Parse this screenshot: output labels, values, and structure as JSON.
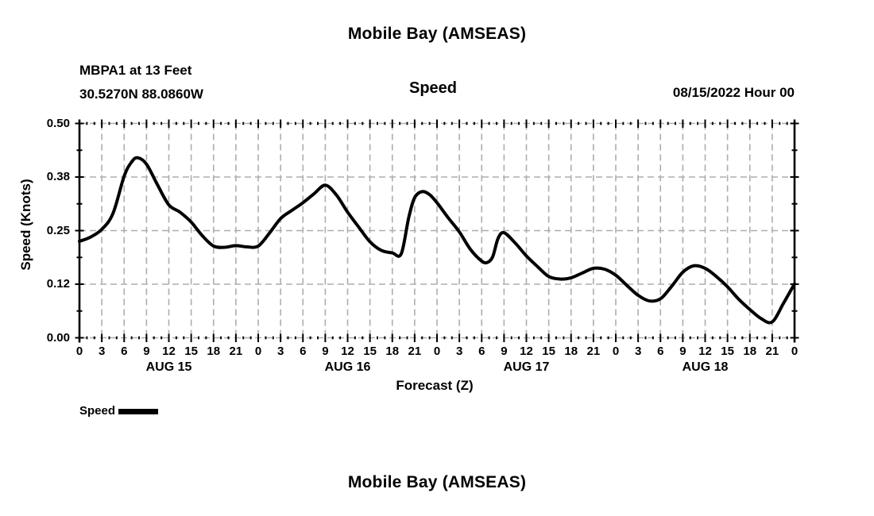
{
  "header": {
    "title": "Mobile Bay (AMSEAS)",
    "station": "MBPA1 at 13 Feet",
    "coords": "30.5270N  88.0860W",
    "subtitle": "Speed",
    "datetime": "08/15/2022 Hour 00"
  },
  "legend": {
    "label": "Speed",
    "swatch_color": "#000000"
  },
  "footer": {
    "next_title": "Mobile Bay (AMSEAS)"
  },
  "colors": {
    "background": "#ffffff",
    "text": "#000000",
    "grid": "#adadad",
    "axis": "#000000",
    "line": "#000000"
  },
  "chart_data": {
    "type": "line",
    "title": "Speed",
    "xlabel": "Forecast (Z)",
    "ylabel": "Speed (Knots)",
    "x_unit": "forecast hour (Z)",
    "y_unit": "knots",
    "xlim_hours": [
      0,
      96
    ],
    "ylim": [
      0.0,
      0.5
    ],
    "grid": true,
    "legend_position": "bottom-left",
    "y_tick_values": [
      0.0,
      0.125,
      0.25,
      0.375,
      0.5
    ],
    "y_tick_labels": [
      "0.00",
      "0.12",
      "0.25",
      "0.38",
      "0.50"
    ],
    "y_minor_tick_step": 0.0625,
    "x_tick_step_hours": 3,
    "x_minor_tick_step_hours": 1,
    "x_tick_labels": [
      "0",
      "3",
      "6",
      "9",
      "12",
      "15",
      "18",
      "21",
      "0",
      "3",
      "6",
      "9",
      "12",
      "15",
      "18",
      "21",
      "0",
      "3",
      "6",
      "9",
      "12",
      "15",
      "18",
      "21",
      "0",
      "3",
      "6",
      "9",
      "12",
      "15",
      "18",
      "21",
      "0"
    ],
    "day_labels": [
      {
        "label": "AUG 15",
        "hour": 12
      },
      {
        "label": "AUG 16",
        "hour": 36
      },
      {
        "label": "AUG 17",
        "hour": 60
      },
      {
        "label": "AUG 18",
        "hour": 84
      }
    ],
    "series": [
      {
        "name": "Speed",
        "color": "#000000",
        "points": [
          [
            0,
            0.225
          ],
          [
            1.5,
            0.235
          ],
          [
            3,
            0.253
          ],
          [
            4.5,
            0.29
          ],
          [
            6,
            0.377
          ],
          [
            7,
            0.41
          ],
          [
            7.8,
            0.42
          ],
          [
            9,
            0.405
          ],
          [
            10.5,
            0.356
          ],
          [
            12,
            0.31
          ],
          [
            13.5,
            0.293
          ],
          [
            15,
            0.27
          ],
          [
            16.5,
            0.238
          ],
          [
            18,
            0.214
          ],
          [
            19.5,
            0.211
          ],
          [
            21,
            0.215
          ],
          [
            22.5,
            0.212
          ],
          [
            24,
            0.214
          ],
          [
            25.5,
            0.244
          ],
          [
            27,
            0.278
          ],
          [
            28.5,
            0.297
          ],
          [
            30,
            0.315
          ],
          [
            31.5,
            0.336
          ],
          [
            33,
            0.356
          ],
          [
            34.5,
            0.333
          ],
          [
            36,
            0.293
          ],
          [
            37.5,
            0.258
          ],
          [
            39,
            0.224
          ],
          [
            40.5,
            0.204
          ],
          [
            42,
            0.198
          ],
          [
            43.2,
            0.196
          ],
          [
            44.2,
            0.28
          ],
          [
            45,
            0.327
          ],
          [
            46,
            0.341
          ],
          [
            47,
            0.334
          ],
          [
            48,
            0.315
          ],
          [
            49.5,
            0.28
          ],
          [
            51,
            0.247
          ],
          [
            52.5,
            0.206
          ],
          [
            54,
            0.179
          ],
          [
            54.8,
            0.176
          ],
          [
            55.5,
            0.19
          ],
          [
            56.2,
            0.232
          ],
          [
            57,
            0.245
          ],
          [
            58.5,
            0.221
          ],
          [
            60,
            0.191
          ],
          [
            61.5,
            0.166
          ],
          [
            63,
            0.143
          ],
          [
            64.5,
            0.137
          ],
          [
            66,
            0.14
          ],
          [
            67.5,
            0.151
          ],
          [
            69,
            0.162
          ],
          [
            70.5,
            0.16
          ],
          [
            72,
            0.146
          ],
          [
            73.5,
            0.122
          ],
          [
            75,
            0.099
          ],
          [
            76.5,
            0.086
          ],
          [
            78,
            0.091
          ],
          [
            79.5,
            0.12
          ],
          [
            81,
            0.153
          ],
          [
            82.5,
            0.168
          ],
          [
            84,
            0.162
          ],
          [
            85.5,
            0.143
          ],
          [
            87,
            0.119
          ],
          [
            88.5,
            0.09
          ],
          [
            90,
            0.066
          ],
          [
            91.5,
            0.045
          ],
          [
            93,
            0.037
          ],
          [
            94.5,
            0.08
          ],
          [
            96,
            0.126
          ]
        ]
      }
    ]
  }
}
